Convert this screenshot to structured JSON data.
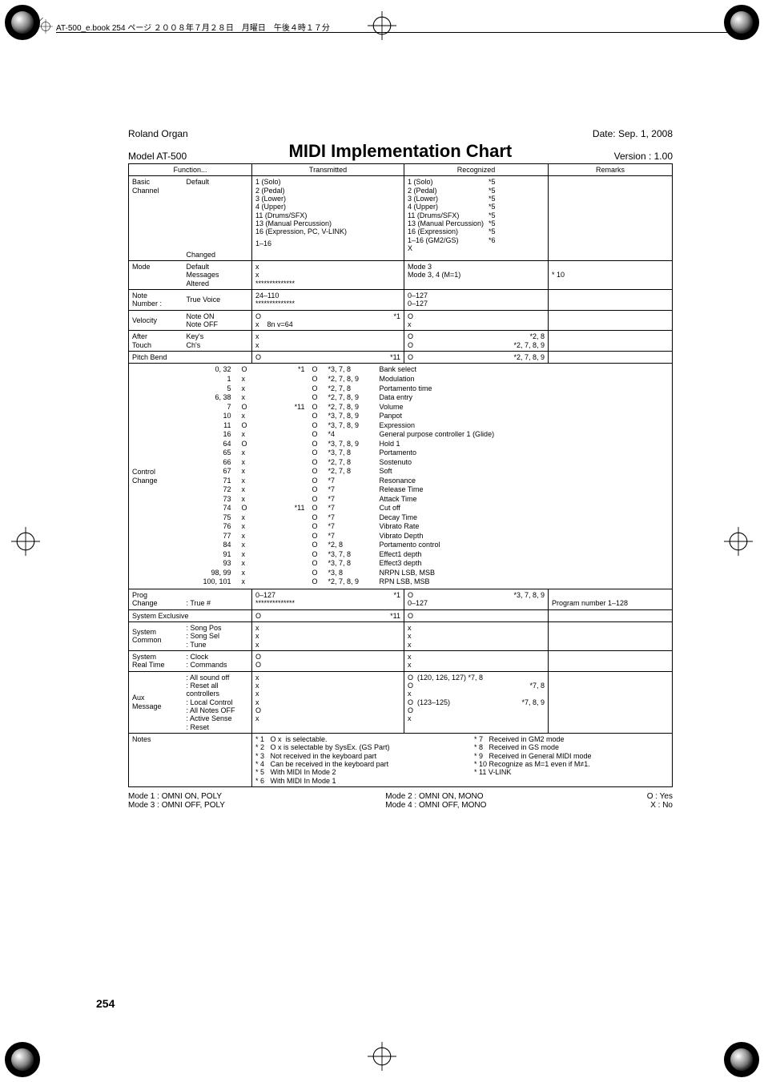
{
  "trim_note": "AT-500_e.book  254 ページ  ２００８年７月２８日　月曜日　午後４時１７分",
  "header": {
    "brand_line1": "Roland Organ",
    "brand_line2": "Model AT-500",
    "title": "MIDI Implementation Chart",
    "date": "Date: Sep. 1, 2008",
    "version": "Version : 1.00"
  },
  "thead": {
    "fn": "Function...",
    "tx": "Transmitted",
    "rx": "Recognized",
    "rem": "Remarks"
  },
  "basic": {
    "label": "Basic\nChannel",
    "rows": [
      "Default",
      "Changed"
    ],
    "tx_default": "1 (Solo)\n2 (Pedal)\n3 (Lower)\n4 (Upper)\n11 (Drums/SFX)\n13 (Manual Percussion)\n16 (Expression, PC, V-LINK)",
    "tx_changed": "1–16",
    "rx_default_l": "1 (Solo)\n2 (Pedal)\n3 (Lower)\n4 (Upper)\n11 (Drums/SFX)\n13 (Manual Percussion)\n16 (Expression)\n1–16 (GM2/GS)",
    "rx_default_r": "*5\n*5\n*5\n*5\n*5\n*5\n*5\n*6",
    "rx_changed": "X"
  },
  "mode": {
    "label": "Mode",
    "rows": [
      "Default",
      "Messages",
      "Altered"
    ],
    "tx": "x\nx\n**************",
    "rx": "Mode 3\nMode 3, 4 (M=1)",
    "rem": "* 10"
  },
  "note": {
    "label": "Note\nNumber :",
    "row": "True Voice",
    "tx": "24–110\n**************",
    "rx": "0–127\n0–127"
  },
  "velocity": {
    "label": "Velocity",
    "rows": [
      "Note ON",
      "Note OFF"
    ],
    "tx_l": "O\nx    8n v=64",
    "tx_r": "*1\n",
    "rx": "O\nx"
  },
  "after": {
    "label": "After\nTouch",
    "rows": [
      "Key's",
      "Ch's"
    ],
    "tx": "x\nx",
    "rx_l": "O\nO",
    "rx_r": "*2, 8\n*2, 7, 8, 9"
  },
  "pitch": {
    "label": "Pitch Bend",
    "tx_l": "O",
    "tx_r": "*11",
    "rx_l": "O",
    "rx_r": "*2, 7, 8, 9"
  },
  "cc": {
    "label": "Control\nChange",
    "nums": [
      "0, 32",
      "1",
      "5",
      "6, 38",
      "7",
      "10",
      "11",
      "16",
      "64",
      "65",
      "66",
      "67",
      "71",
      "72",
      "73",
      "74",
      "75",
      "76",
      "77",
      "84",
      "91",
      "93",
      "98, 99",
      "100, 101"
    ],
    "tx": [
      "O",
      "x",
      "x",
      "x",
      "O",
      "x",
      "O",
      "x",
      "O",
      "x",
      "x",
      "x",
      "x",
      "x",
      "x",
      "O",
      "x",
      "x",
      "x",
      "x",
      "x",
      "x",
      "x",
      "x"
    ],
    "txn": [
      "*1",
      "",
      "",
      "",
      "*11",
      "",
      "",
      "",
      "",
      "",
      "",
      "",
      "",
      "",
      "",
      "*11",
      "",
      "",
      "",
      "",
      "",
      "",
      "",
      ""
    ],
    "rx": [
      "O",
      "O",
      "O",
      "O",
      "O",
      "O",
      "O",
      "O",
      "O",
      "O",
      "O",
      "O",
      "O",
      "O",
      "O",
      "O",
      "O",
      "O",
      "O",
      "O",
      "O",
      "O",
      "O",
      "O"
    ],
    "rxn": [
      "*3, 7, 8",
      "*2, 7, 8, 9",
      "*2, 7, 8",
      "*2, 7, 8, 9",
      "*2, 7, 8, 9",
      "*3, 7, 8, 9",
      "*3, 7, 8, 9",
      "*4",
      "*3, 7, 8, 9",
      "*3, 7, 8",
      "*2, 7, 8",
      "*2, 7, 8",
      "*7",
      "*7",
      "*7",
      "*7",
      "*7",
      "*7",
      "*7",
      "*2, 8",
      "*3, 7, 8",
      "*3, 7, 8",
      "*3, 8",
      "*2, 7, 8, 9"
    ],
    "rem": [
      "Bank select",
      "Modulation",
      "Portamento time",
      "Data entry",
      "Volume",
      "Panpot",
      "Expression",
      "General purpose controller 1 (Glide)",
      "Hold 1",
      "Portamento",
      "Sostenuto",
      "Soft",
      "Resonance",
      "Release Time",
      "Attack Time",
      "Cut off",
      "Decay Time",
      "Vibrato Rate",
      "Vibrato Depth",
      "Portamento control",
      "Effect1 depth",
      "Effect3 depth",
      "NRPN  LSB, MSB",
      "RPN  LSB, MSB"
    ]
  },
  "prog": {
    "label": "Prog\nChange",
    "row": ": True #",
    "tx_l": "0–127\n**************",
    "tx_r": "*1",
    "rx_l": "O\n0–127",
    "rx_r": "*3, 7, 8, 9",
    "rem": "Program number 1–128"
  },
  "sysex": {
    "label": "System Exclusive",
    "tx_l": "O",
    "tx_r": "*11",
    "rx": "O"
  },
  "syscommon": {
    "label": "System\nCommon",
    "rows": [
      ": Song Pos",
      ": Song Sel",
      ": Tune"
    ],
    "tx": "x\nx\nx",
    "rx": "x\nx\nx"
  },
  "sysrt": {
    "label": "System\nReal Time",
    "rows": [
      ": Clock",
      ": Commands"
    ],
    "tx": "O\nO",
    "rx": "x\nx"
  },
  "aux": {
    "label": "Aux\nMessage",
    "rows": [
      ": All sound off",
      ": Reset all controllers",
      ": Local Control",
      ": All Notes OFF",
      ": Active Sense",
      ": Reset"
    ],
    "tx": "x\nx\nx\nx\nO\nx",
    "rx_l": "O  (120, 126, 127) *7, 8\nO\nx\nO  (123–125)\nO\nx",
    "rx_r": "\n*7, 8\n\n*7, 8, 9\n\n"
  },
  "notes": {
    "label": "Notes",
    "left": "* 1   O x  is selectable.\n* 2   O x is selectable by SysEx. (GS Part)\n* 3   Not received in the keyboard part\n* 4   Can be received in the keyboard part\n* 5   With MIDI In Mode 2\n* 6   With MIDI In Mode 1",
    "right": "* 7   Received in GM2 mode\n* 8   Received in GS mode\n* 9   Received in General MIDI mode\n* 10 Recognize as M=1 even if M≠1.\n* 11 V-LINK"
  },
  "legend": {
    "l1": "Mode 1 : OMNI ON, POLY",
    "l2": "Mode 3 : OMNI OFF, POLY",
    "c1": "Mode 2 : OMNI ON, MONO",
    "c2": "Mode 4 : OMNI OFF, MONO",
    "r1": "O : Yes",
    "r2": "X : No"
  },
  "page": "254",
  "colors": {
    "text": "#000000",
    "bg": "#ffffff"
  }
}
